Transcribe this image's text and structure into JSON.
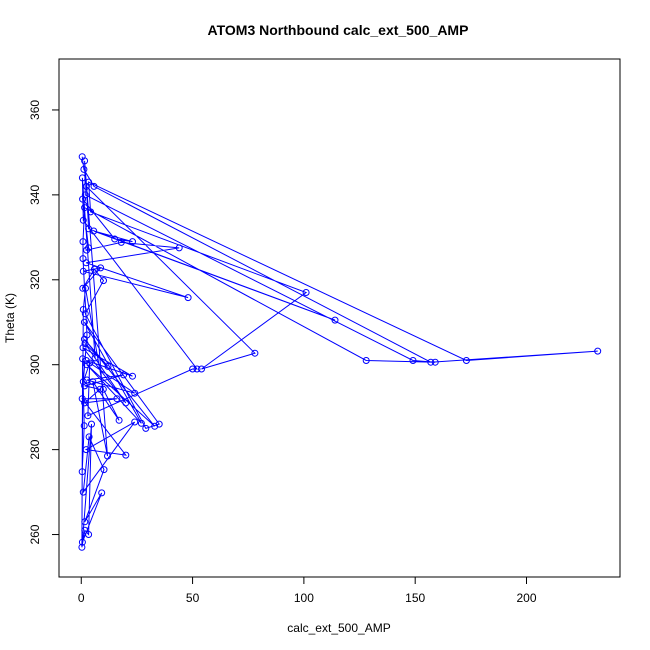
{
  "chart_data": {
    "type": "line",
    "title": "ATOM3 Northbound calc_ext_500_AMP",
    "xlabel": "calc_ext_500_AMP",
    "ylabel": "Theta (K)",
    "xlim": [
      -10,
      242
    ],
    "ylim": [
      250,
      372
    ],
    "x_ticks": [
      0,
      50,
      100,
      150,
      200
    ],
    "y_ticks": [
      260,
      280,
      300,
      320,
      340,
      360
    ],
    "grid": false,
    "series_color": "#0000ff",
    "points": [
      [
        0.4,
        349
      ],
      [
        1.2,
        346
      ],
      [
        5.7,
        342
      ],
      [
        157,
        300.6
      ],
      [
        232,
        303.2
      ],
      [
        173,
        301
      ],
      [
        3.3,
        343
      ],
      [
        4.2,
        336
      ],
      [
        101,
        317
      ],
      [
        54,
        299
      ],
      [
        78,
        302.7
      ],
      [
        2.3,
        342
      ],
      [
        3.3,
        332
      ],
      [
        114,
        310.5
      ],
      [
        5.6,
        331.5
      ],
      [
        23,
        329
      ],
      [
        15,
        329.6
      ],
      [
        0.6,
        339
      ],
      [
        3.3,
        327.5
      ],
      [
        2.4,
        327
      ],
      [
        18,
        328.8
      ],
      [
        44,
        327.5
      ],
      [
        2.2,
        324
      ],
      [
        48,
        315.8
      ],
      [
        0.9,
        322
      ],
      [
        8.7,
        322.8
      ],
      [
        0.7,
        318
      ],
      [
        5.9,
        322.5
      ],
      [
        10,
        319.8
      ],
      [
        1.8,
        312
      ],
      [
        29,
        285
      ],
      [
        35,
        286
      ],
      [
        1.4,
        310
      ],
      [
        27,
        286.2
      ],
      [
        2.5,
        300
      ],
      [
        33,
        285.5
      ],
      [
        1.4,
        306
      ],
      [
        12,
        299.6
      ],
      [
        1.7,
        305
      ],
      [
        20,
        291
      ],
      [
        0.8,
        304
      ],
      [
        23,
        297.3
      ],
      [
        2.2,
        301
      ],
      [
        24,
        293.3
      ],
      [
        2.6,
        296.4
      ],
      [
        19,
        297.6
      ],
      [
        1.5,
        295
      ],
      [
        8.4,
        294.2
      ],
      [
        1.5,
        291
      ],
      [
        16,
        292
      ],
      [
        0.4,
        292
      ],
      [
        20,
        278.7
      ],
      [
        2.2,
        280
      ],
      [
        24,
        286.5
      ],
      [
        0.9,
        270
      ],
      [
        3.5,
        283
      ],
      [
        10.2,
        275.3
      ],
      [
        1.6,
        263
      ],
      [
        9.2,
        269.8
      ],
      [
        0.5,
        258.2
      ],
      [
        4.6,
        286
      ],
      [
        3.3,
        260
      ],
      [
        1.6,
        261
      ],
      [
        0.3,
        257
      ],
      [
        0.6,
        301.4
      ],
      [
        1.3,
        285.6
      ],
      [
        0.4,
        274.8
      ],
      [
        0.9,
        313
      ],
      [
        1.9,
        318
      ],
      [
        9.9,
        294.2
      ],
      [
        17,
        286.9
      ],
      [
        5.2,
        296
      ],
      [
        11.8,
        278.5
      ],
      [
        1.5,
        348
      ],
      [
        1.8,
        340
      ],
      [
        149,
        301
      ],
      [
        159,
        300.6
      ],
      [
        128,
        301
      ],
      [
        1.5,
        337
      ],
      [
        0.8,
        329
      ],
      [
        0.8,
        325
      ],
      [
        2.6,
        307
      ],
      [
        0.9,
        296
      ],
      [
        3.8,
        300.4
      ],
      [
        3,
        288
      ],
      [
        50,
        299
      ],
      [
        52,
        299
      ],
      [
        0.9,
        334
      ],
      [
        0.5,
        344
      ],
      [
        6.2,
        301.6
      ]
    ]
  }
}
